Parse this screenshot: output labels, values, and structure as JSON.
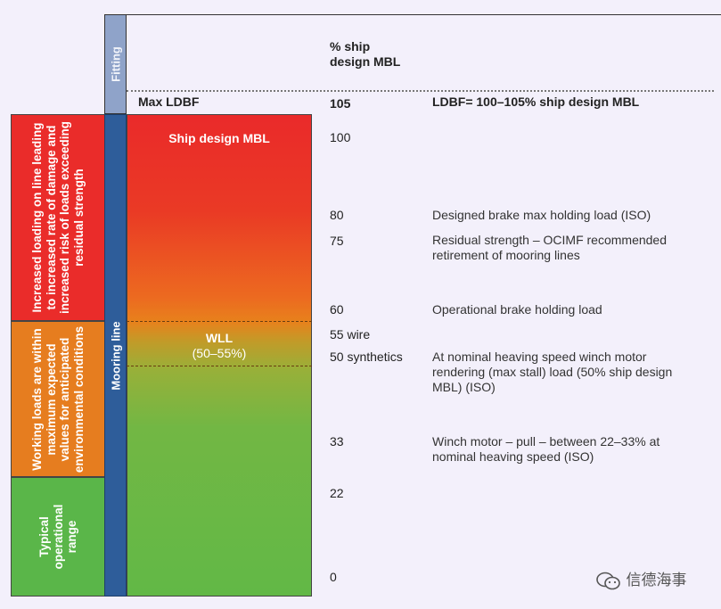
{
  "fitting": {
    "bar_label": "Fitting",
    "header": "% ship design MBL",
    "header_line1": "% ship",
    "header_line2": "design MBL",
    "max_ldbf_label": "Max LDBF",
    "max_ldbf_value": "105",
    "ldbf_note": "LDBF= 100–105% ship design MBL"
  },
  "mooring_bar_label": "Mooring line",
  "gradient_labels": {
    "ship_design_mbl": "Ship design MBL",
    "wll_line1": "WLL",
    "wll_line2": "(50–55%)"
  },
  "categories": [
    {
      "text": "Increased loading on line leading to increased rate of damage and increased risk of loads exceeding residual strength",
      "color": "#ea2c2a"
    },
    {
      "text": "Working loads are within maximum expected values for anticipated environmental conditions",
      "color": "#e67d1f"
    },
    {
      "text": "Typical operational range",
      "color": "#5ab649"
    }
  ],
  "levels": [
    {
      "value": "100",
      "description": ""
    },
    {
      "value": "80",
      "description": "Designed brake max holding load (ISO)"
    },
    {
      "value": "75",
      "description": "Residual strength – OCIMF recommended retirement of mooring lines"
    },
    {
      "value": "60",
      "description": "Operational brake holding load"
    },
    {
      "value": "55 wire",
      "description": ""
    },
    {
      "value": "50 synthetics",
      "description": "At nominal heaving speed winch motor rendering (max stall) load (50% ship design MBL) (ISO)"
    },
    {
      "value": "33",
      "description": "Winch motor – pull – between 22–33% at nominal heaving speed (ISO)"
    },
    {
      "value": "22",
      "description": ""
    },
    {
      "value": "0",
      "description": ""
    }
  ],
  "watermark": "信德海事",
  "colors": {
    "red": "#ea2a2a",
    "orange": "#e8811c",
    "green": "#62b846",
    "mooring_blue": "#2e5d9a",
    "fitting_blue": "#8fa3c9"
  }
}
